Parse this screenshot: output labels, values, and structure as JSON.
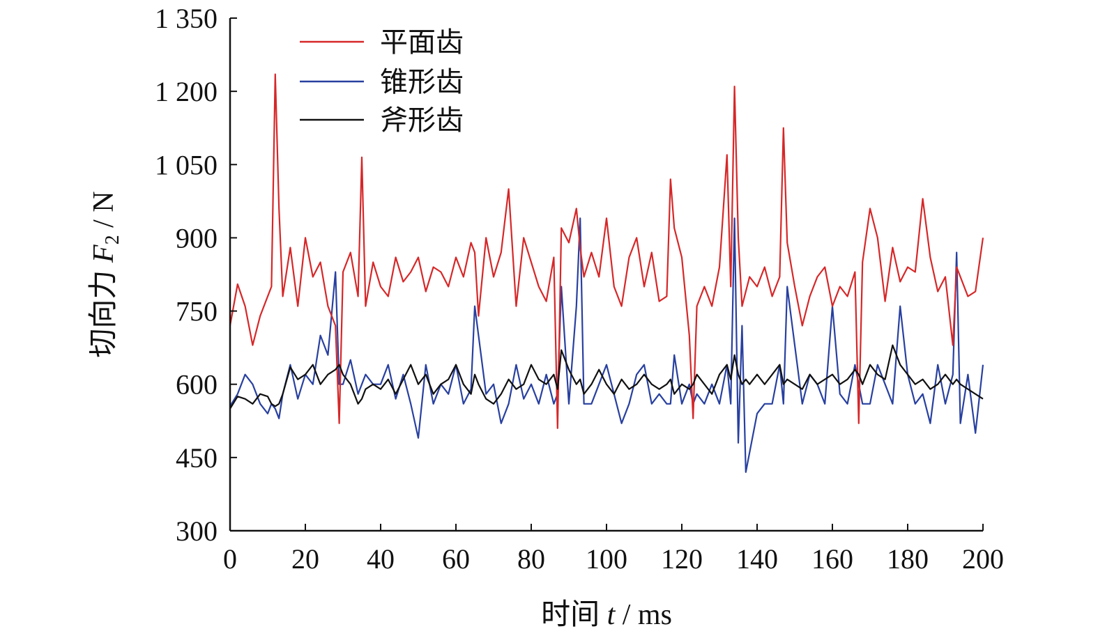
{
  "chart_data": {
    "type": "line",
    "xlabel_prefix": "时间 ",
    "xlabel_var": "t",
    "xlabel_unit": " / ms",
    "ylabel_prefix": "切向力 ",
    "ylabel_var": "F",
    "ylabel_sub": "2",
    "ylabel_unit": " / N",
    "xlim": [
      0,
      200
    ],
    "ylim": [
      300,
      1350
    ],
    "x_ticks": [
      0,
      20,
      40,
      60,
      80,
      100,
      120,
      140,
      160,
      180,
      200
    ],
    "x_tick_labels": [
      "0",
      "20",
      "40",
      "60",
      "80",
      "100",
      "120",
      "140",
      "160",
      "180",
      "200"
    ],
    "y_ticks": [
      300,
      450,
      600,
      750,
      900,
      1050,
      1200,
      1350
    ],
    "y_tick_labels": [
      "300",
      "450",
      "600",
      "750",
      "900",
      "1 050",
      "1 200",
      "1 350"
    ],
    "grid": false,
    "legend_position": "top-left",
    "x": [
      0,
      2,
      4,
      6,
      8,
      10,
      11,
      12,
      13,
      14,
      16,
      18,
      20,
      22,
      24,
      26,
      28,
      29,
      30,
      32,
      34,
      35,
      36,
      38,
      40,
      42,
      44,
      46,
      48,
      50,
      52,
      54,
      56,
      58,
      60,
      62,
      64,
      65,
      66,
      68,
      70,
      72,
      74,
      76,
      78,
      80,
      82,
      84,
      86,
      87,
      88,
      90,
      92,
      93,
      94,
      96,
      98,
      100,
      102,
      104,
      106,
      108,
      110,
      112,
      114,
      116,
      117,
      118,
      120,
      122,
      123,
      124,
      126,
      128,
      130,
      132,
      133,
      134,
      135,
      136,
      137,
      138,
      140,
      142,
      144,
      146,
      147,
      148,
      150,
      152,
      154,
      156,
      158,
      160,
      162,
      164,
      166,
      167,
      168,
      170,
      172,
      174,
      176,
      178,
      180,
      182,
      184,
      186,
      188,
      190,
      192,
      193,
      194,
      196,
      198,
      200
    ],
    "series": [
      {
        "name": "平面齿",
        "color": "#d62728",
        "values": [
          720,
          805,
          760,
          680,
          740,
          780,
          800,
          1235,
          960,
          780,
          880,
          760,
          900,
          820,
          850,
          760,
          720,
          520,
          830,
          870,
          780,
          1065,
          760,
          850,
          800,
          780,
          860,
          810,
          830,
          860,
          790,
          840,
          830,
          800,
          860,
          820,
          890,
          870,
          740,
          900,
          820,
          870,
          1000,
          760,
          900,
          850,
          800,
          770,
          860,
          510,
          920,
          890,
          960,
          880,
          820,
          870,
          820,
          940,
          800,
          760,
          860,
          900,
          800,
          870,
          770,
          780,
          1020,
          920,
          860,
          700,
          530,
          760,
          800,
          760,
          840,
          1070,
          800,
          1210,
          900,
          760,
          790,
          820,
          800,
          840,
          780,
          820,
          1125,
          890,
          800,
          720,
          780,
          820,
          840,
          760,
          800,
          780,
          830,
          520,
          850,
          960,
          900,
          770,
          880,
          810,
          840,
          830,
          980,
          860,
          790,
          820,
          680,
          840,
          820,
          780,
          790,
          900
        ]
      },
      {
        "name": "锥形齿",
        "color": "#2840a0",
        "values": [
          555,
          580,
          620,
          600,
          560,
          540,
          560,
          550,
          530,
          580,
          640,
          570,
          620,
          600,
          700,
          660,
          830,
          600,
          600,
          650,
          580,
          600,
          620,
          600,
          600,
          640,
          570,
          620,
          560,
          490,
          640,
          560,
          600,
          580,
          640,
          560,
          590,
          760,
          700,
          580,
          600,
          520,
          560,
          640,
          570,
          600,
          560,
          620,
          560,
          580,
          800,
          560,
          760,
          940,
          560,
          560,
          600,
          640,
          580,
          520,
          560,
          620,
          640,
          560,
          580,
          560,
          560,
          660,
          560,
          600,
          560,
          580,
          560,
          600,
          560,
          640,
          560,
          940,
          480,
          720,
          420,
          460,
          540,
          560,
          560,
          640,
          560,
          800,
          680,
          560,
          620,
          600,
          560,
          760,
          580,
          560,
          640,
          600,
          560,
          560,
          640,
          600,
          560,
          760,
          620,
          560,
          580,
          520,
          640,
          560,
          620,
          870,
          520,
          620,
          500,
          640
        ]
      },
      {
        "name": "斧形齿",
        "color": "#111111",
        "values": [
          550,
          575,
          570,
          560,
          580,
          575,
          560,
          555,
          560,
          580,
          635,
          610,
          620,
          640,
          600,
          620,
          630,
          640,
          620,
          600,
          560,
          570,
          590,
          600,
          590,
          610,
          580,
          610,
          640,
          600,
          620,
          580,
          600,
          610,
          640,
          600,
          580,
          620,
          600,
          570,
          560,
          580,
          610,
          590,
          600,
          640,
          610,
          600,
          620,
          590,
          670,
          630,
          600,
          610,
          580,
          600,
          630,
          600,
          580,
          610,
          590,
          600,
          620,
          600,
          590,
          600,
          610,
          580,
          600,
          590,
          600,
          620,
          600,
          580,
          620,
          640,
          610,
          660,
          620,
          600,
          610,
          600,
          620,
          600,
          620,
          640,
          600,
          610,
          600,
          590,
          620,
          600,
          610,
          620,
          600,
          610,
          630,
          620,
          600,
          640,
          620,
          610,
          680,
          640,
          620,
          600,
          610,
          590,
          600,
          620,
          600,
          610,
          600,
          590,
          580,
          570
        ]
      }
    ]
  }
}
